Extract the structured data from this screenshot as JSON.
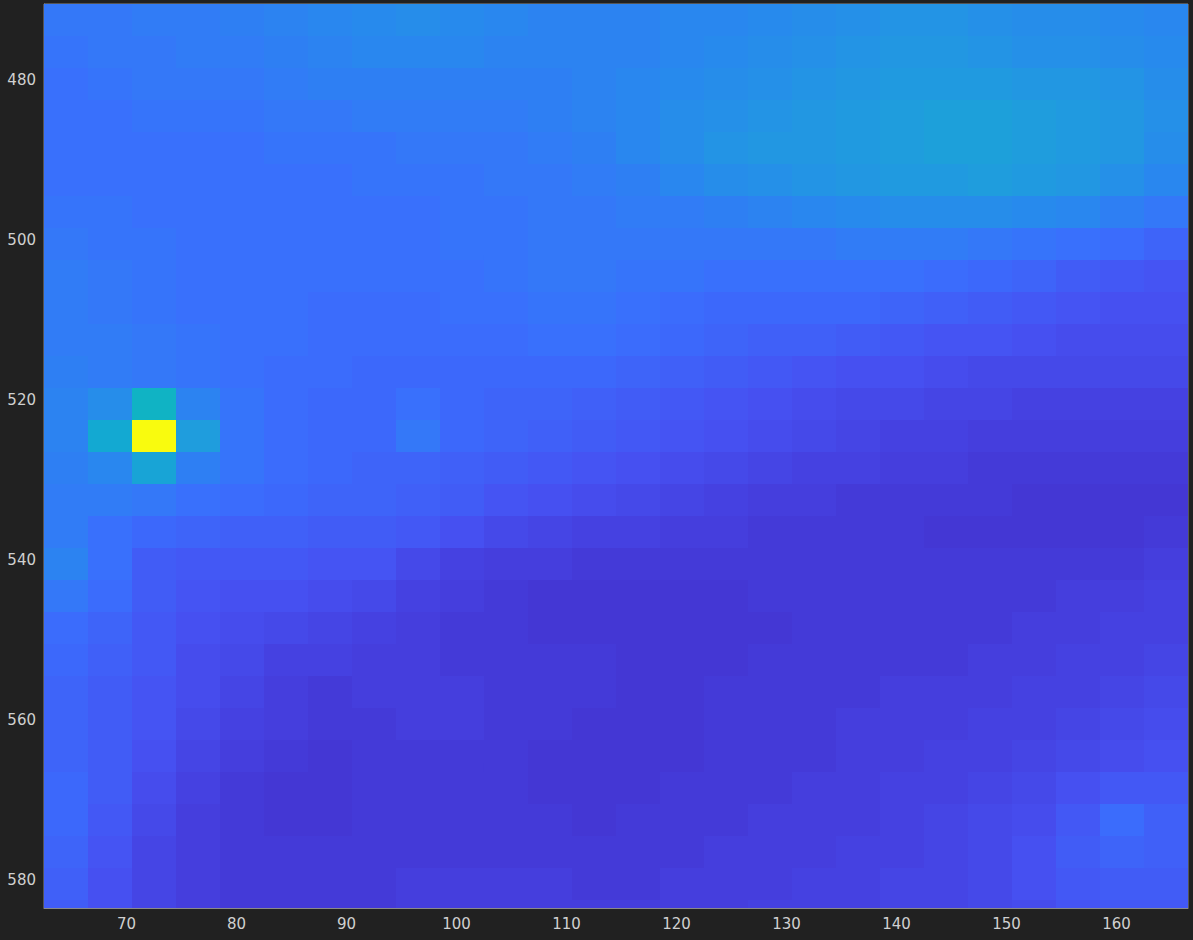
{
  "chart_data": {
    "type": "heatmap",
    "x": [
      64.5,
      68.5,
      72.5,
      76.5,
      80.5,
      84.5,
      88.5,
      92.5,
      96.5,
      100.5,
      104.5,
      108.5,
      112.5,
      116.5,
      120.5,
      124.5,
      128.5,
      132.5,
      136.5,
      140.5,
      144.5,
      148.5,
      152.5,
      156.5,
      160.5,
      164.5
    ],
    "y": [
      472.5,
      476.5,
      480.5,
      484.5,
      488.5,
      492.5,
      496.5,
      500.5,
      504.5,
      508.5,
      512.5,
      516.5,
      520.5,
      524.5,
      528.5,
      532.5,
      536.5,
      540.5,
      544.5,
      548.5,
      552.5,
      556.5,
      560.5,
      564.5,
      568.5,
      572.5,
      576.5,
      580.5,
      584.5
    ],
    "values": [
      [
        24,
        24,
        25,
        25,
        26,
        27,
        28,
        29,
        30,
        29,
        28,
        27,
        27,
        27,
        28,
        28,
        29,
        30,
        31,
        32,
        32,
        31,
        30,
        30,
        29,
        28
      ],
      [
        23,
        24,
        24,
        25,
        25,
        26,
        27,
        28,
        28,
        28,
        27,
        27,
        27,
        27,
        28,
        29,
        30,
        31,
        32,
        33,
        33,
        32,
        31,
        31,
        30,
        29
      ],
      [
        22,
        23,
        24,
        24,
        24,
        25,
        26,
        26,
        26,
        26,
        26,
        26,
        27,
        28,
        29,
        30,
        31,
        32,
        33,
        34,
        34,
        34,
        33,
        33,
        32,
        30
      ],
      [
        22,
        22,
        23,
        23,
        23,
        24,
        24,
        25,
        25,
        25,
        25,
        26,
        27,
        28,
        30,
        31,
        32,
        33,
        34,
        35,
        36,
        36,
        35,
        34,
        33,
        31
      ],
      [
        22,
        22,
        22,
        22,
        22,
        23,
        23,
        23,
        24,
        24,
        24,
        25,
        26,
        28,
        30,
        32,
        33,
        33,
        34,
        35,
        36,
        36,
        35,
        34,
        33,
        30
      ],
      [
        22,
        22,
        22,
        22,
        22,
        22,
        22,
        23,
        23,
        23,
        24,
        24,
        25,
        26,
        28,
        30,
        31,
        32,
        33,
        34,
        34,
        35,
        34,
        33,
        31,
        28
      ],
      [
        23,
        23,
        22,
        22,
        22,
        22,
        22,
        22,
        22,
        23,
        23,
        24,
        24,
        25,
        25,
        26,
        27,
        28,
        29,
        30,
        30,
        30,
        29,
        28,
        26,
        24
      ],
      [
        24,
        23,
        23,
        22,
        22,
        22,
        22,
        22,
        22,
        23,
        23,
        24,
        24,
        24,
        24,
        24,
        24,
        24,
        25,
        25,
        25,
        24,
        23,
        22,
        21,
        19
      ],
      [
        25,
        24,
        23,
        22,
        22,
        22,
        22,
        22,
        22,
        22,
        23,
        24,
        24,
        23,
        23,
        22,
        22,
        22,
        22,
        22,
        21,
        20,
        19,
        17,
        16,
        15
      ],
      [
        25,
        24,
        23,
        22,
        22,
        22,
        21,
        21,
        21,
        22,
        22,
        23,
        23,
        22,
        21,
        20,
        20,
        20,
        20,
        19,
        18,
        17,
        16,
        15,
        14,
        14
      ],
      [
        25,
        25,
        24,
        23,
        22,
        22,
        21,
        21,
        21,
        21,
        21,
        22,
        22,
        21,
        20,
        19,
        18,
        18,
        17,
        16,
        15,
        15,
        14,
        13,
        13,
        13
      ],
      [
        26,
        25,
        24,
        23,
        22,
        21,
        21,
        20,
        20,
        20,
        20,
        20,
        20,
        19,
        18,
        17,
        16,
        15,
        14,
        14,
        13,
        12,
        12,
        12,
        12,
        12
      ],
      [
        27,
        30,
        45,
        27,
        23,
        21,
        20,
        20,
        22,
        20,
        19,
        19,
        18,
        17,
        16,
        15,
        14,
        13,
        12,
        12,
        11,
        11,
        10,
        10,
        10,
        10
      ],
      [
        27,
        40,
        100,
        35,
        23,
        21,
        20,
        20,
        24,
        20,
        19,
        18,
        17,
        16,
        15,
        14,
        13,
        12,
        11,
        10,
        10,
        9,
        9,
        9,
        9,
        9
      ],
      [
        26,
        28,
        38,
        26,
        23,
        21,
        20,
        19,
        19,
        18,
        17,
        16,
        15,
        14,
        13,
        12,
        11,
        10,
        10,
        9,
        9,
        8,
        8,
        8,
        8,
        8
      ],
      [
        25,
        25,
        24,
        22,
        21,
        20,
        19,
        19,
        18,
        17,
        15,
        14,
        13,
        12,
        11,
        10,
        9,
        9,
        8,
        8,
        8,
        8,
        7,
        7,
        7,
        7
      ],
      [
        25,
        22,
        20,
        19,
        18,
        18,
        17,
        17,
        16,
        14,
        12,
        11,
        10,
        10,
        9,
        9,
        8,
        8,
        8,
        8,
        7,
        7,
        7,
        7,
        7,
        8
      ],
      [
        27,
        22,
        17,
        16,
        16,
        16,
        15,
        15,
        12,
        10,
        9,
        9,
        8,
        8,
        8,
        8,
        8,
        8,
        8,
        8,
        8,
        8,
        8,
        8,
        8,
        9
      ],
      [
        24,
        21,
        17,
        15,
        14,
        14,
        13,
        12,
        10,
        9,
        8,
        7,
        7,
        7,
        7,
        7,
        8,
        8,
        8,
        8,
        8,
        8,
        8,
        9,
        9,
        10
      ],
      [
        21,
        19,
        16,
        14,
        13,
        12,
        11,
        10,
        9,
        8,
        8,
        7,
        7,
        7,
        7,
        7,
        7,
        8,
        8,
        8,
        8,
        8,
        9,
        9,
        10,
        10
      ],
      [
        20,
        18,
        16,
        13,
        12,
        10,
        10,
        9,
        9,
        8,
        8,
        8,
        8,
        7,
        7,
        7,
        8,
        8,
        8,
        8,
        8,
        9,
        9,
        10,
        10,
        11
      ],
      [
        19,
        17,
        15,
        13,
        11,
        9,
        8,
        9,
        9,
        9,
        8,
        8,
        8,
        7,
        7,
        8,
        8,
        8,
        8,
        9,
        9,
        9,
        10,
        10,
        11,
        12
      ],
      [
        19,
        17,
        15,
        12,
        10,
        9,
        8,
        8,
        9,
        9,
        8,
        8,
        7,
        7,
        7,
        8,
        8,
        8,
        9,
        9,
        9,
        10,
        10,
        11,
        12,
        13
      ],
      [
        19,
        17,
        14,
        11,
        9,
        8,
        7,
        8,
        8,
        8,
        8,
        7,
        7,
        7,
        7,
        8,
        8,
        8,
        9,
        9,
        10,
        10,
        11,
        12,
        13,
        14
      ],
      [
        20,
        17,
        13,
        10,
        8,
        7,
        7,
        8,
        8,
        8,
        8,
        7,
        7,
        7,
        8,
        8,
        8,
        9,
        9,
        10,
        10,
        11,
        12,
        14,
        16,
        16
      ],
      [
        20,
        16,
        12,
        9,
        8,
        7,
        7,
        8,
        8,
        8,
        8,
        8,
        7,
        8,
        8,
        8,
        9,
        9,
        9,
        10,
        11,
        12,
        13,
        16,
        21,
        18
      ],
      [
        19,
        15,
        11,
        9,
        8,
        8,
        8,
        8,
        8,
        8,
        8,
        8,
        8,
        8,
        8,
        9,
        9,
        9,
        10,
        10,
        11,
        12,
        14,
        17,
        19,
        18
      ],
      [
        18,
        14,
        11,
        9,
        8,
        8,
        8,
        8,
        9,
        9,
        9,
        9,
        8,
        8,
        9,
        9,
        9,
        10,
        10,
        11,
        11,
        12,
        14,
        16,
        17,
        17
      ],
      [
        17,
        14,
        11,
        9,
        8,
        8,
        8,
        8,
        9,
        9,
        9,
        9,
        9,
        9,
        9,
        9,
        10,
        10,
        10,
        11,
        11,
        12,
        13,
        15,
        16,
        16
      ]
    ],
    "xlim": [
      62.5,
      166.5
    ],
    "ylim": [
      583.5,
      470.5
    ],
    "xticks": [
      70,
      80,
      90,
      100,
      110,
      120,
      130,
      140,
      150,
      160
    ],
    "yticks": [
      480,
      500,
      520,
      540,
      560,
      580
    ],
    "clim": [
      0,
      100
    ]
  }
}
